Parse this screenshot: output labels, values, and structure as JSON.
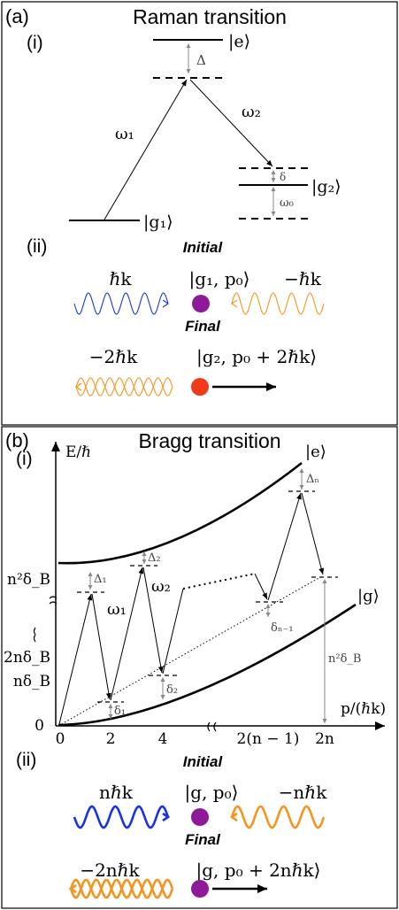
{
  "panel_a": {
    "tag": "(a)",
    "title": "Raman transition",
    "sub_i": "(i)",
    "sub_ii": "(ii)",
    "ket_e": "|e⟩",
    "ket_g1": "|g₁⟩",
    "ket_g2": "|g₂⟩",
    "delta_cap": "Δ",
    "delta_small": "δ",
    "omega0": "ω₀",
    "omega1": "ω₁",
    "omega2": "ω₂",
    "initial": "Initial",
    "final": "Final",
    "hk_left": "ℏk",
    "state_initial": "|g₁, p₀⟩",
    "hk_right": "−ℏk",
    "hk_final": "−2ℏk",
    "state_final": "|g₂, p₀ + 2ℏk⟩"
  },
  "panel_b": {
    "tag": "(b)",
    "title": "Bragg transition",
    "sub_i": "(i)",
    "sub_ii": "(ii)",
    "y_axis": "E/ℏ",
    "x_axis": "p/(ℏk)",
    "ket_e": "|e⟩",
    "ket_g": "|g⟩",
    "y_n2": "n²δ_B",
    "y_2n": "2nδ_B",
    "y_n": "nδ_B",
    "y_0": "0",
    "x_0": "0",
    "x_2": "2",
    "x_4": "4",
    "x_2n1": "2(n − 1)",
    "x_2n": "2n",
    "Delta1": "Δ₁",
    "Delta2": "Δ₂",
    "Deltan": "Δₙ",
    "delta1": "δ₁",
    "delta2": "δ₂",
    "deltan1": "δₙ₋₁",
    "n2dB_right": "n²δ_B",
    "omega1": "ω₁",
    "omega2": "ω₂",
    "initial": "Initial",
    "final": "Final",
    "nhk_left": "nℏk",
    "state_initial": "|g, p₀⟩",
    "nhk_right": "−nℏk",
    "nhk_final": "−2nℏk",
    "state_final": "|g, p₀ + 2nℏk⟩"
  },
  "colors": {
    "blue_wave": "#1a33e0",
    "orange_wave": "#f5951f",
    "atom_purple": "#8e1a9a",
    "atom_red": "#f03a1a",
    "grey": "#888888"
  }
}
